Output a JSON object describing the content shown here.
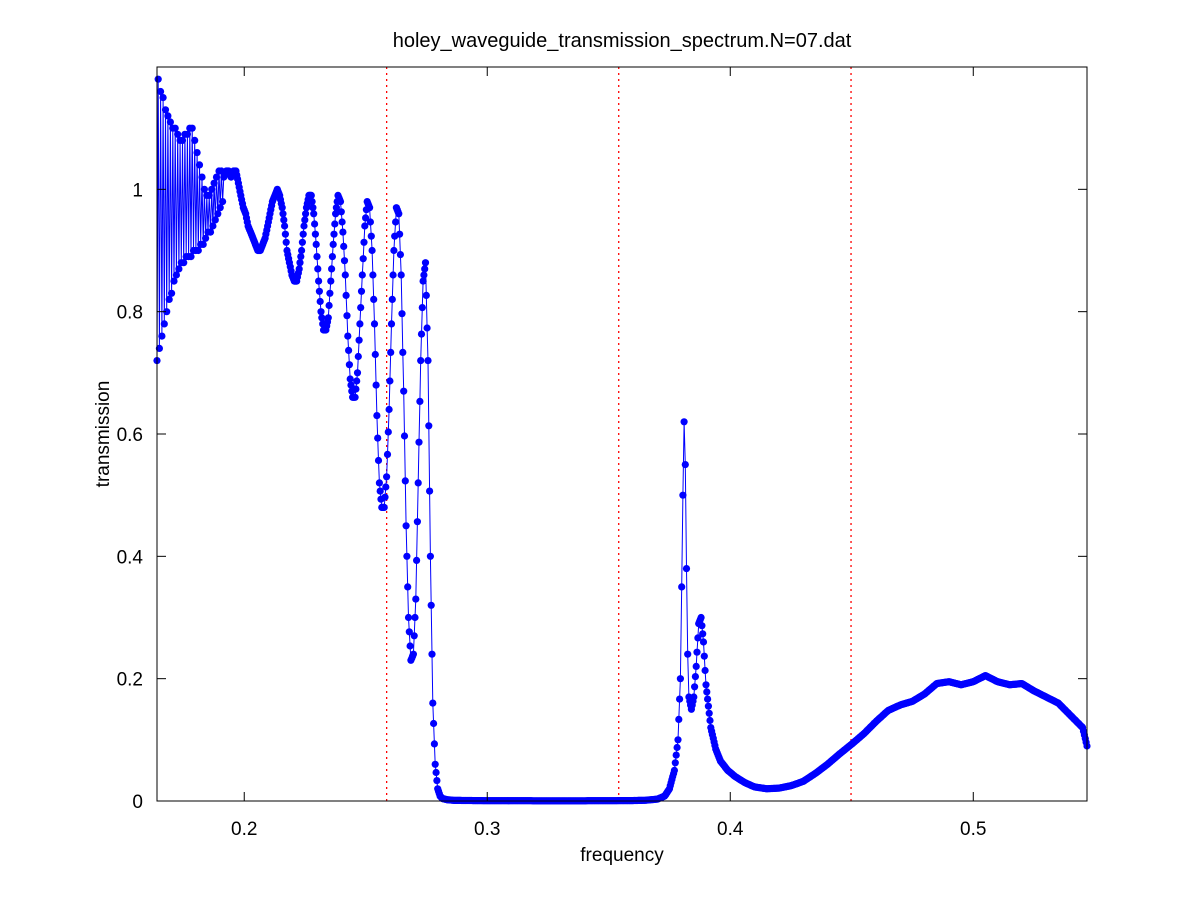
{
  "chart_data": {
    "type": "line",
    "title": "holey_waveguide_transmission_spectrum.N=07.dat",
    "xlabel": "frequency",
    "ylabel": "transmission",
    "xlim": [
      0.1641,
      0.5468
    ],
    "ylim": [
      0,
      1.2
    ],
    "x_ticks": [
      0.2,
      0.3,
      0.4,
      0.5
    ],
    "x_tick_labels": [
      "0.2",
      "0.3",
      "0.4",
      "0.5"
    ],
    "y_ticks": [
      0,
      0.2,
      0.4,
      0.6,
      0.8,
      1
    ],
    "y_tick_labels": [
      "0",
      "0.2",
      "0.4",
      "0.6",
      "0.8",
      "1"
    ],
    "grid": false,
    "legend": "none",
    "marker": "filled-circle",
    "vertical_markers": [
      {
        "x": 0.2586,
        "color": "#ff0000",
        "style": "dotted"
      },
      {
        "x": 0.3541,
        "color": "#ff0000",
        "style": "dotted"
      },
      {
        "x": 0.4497,
        "color": "#ff0000",
        "style": "dotted"
      }
    ],
    "series": [
      {
        "color": "#0000ff",
        "points": [
          [
            0.1641,
            0.72
          ],
          [
            0.1646,
            1.18
          ],
          [
            0.1651,
            0.74
          ],
          [
            0.1656,
            1.16
          ],
          [
            0.1661,
            0.76
          ],
          [
            0.1666,
            1.15
          ],
          [
            0.1671,
            0.78
          ],
          [
            0.1676,
            1.13
          ],
          [
            0.1681,
            0.8
          ],
          [
            0.1686,
            1.12
          ],
          [
            0.1691,
            0.82
          ],
          [
            0.1696,
            1.11
          ],
          [
            0.1701,
            0.83
          ],
          [
            0.1706,
            1.1
          ],
          [
            0.1711,
            0.85
          ],
          [
            0.1716,
            1.1
          ],
          [
            0.1721,
            0.86
          ],
          [
            0.1726,
            1.09
          ],
          [
            0.1731,
            0.87
          ],
          [
            0.1736,
            1.08
          ],
          [
            0.1741,
            0.88
          ],
          [
            0.1746,
            1.08
          ],
          [
            0.1751,
            0.88
          ],
          [
            0.1756,
            1.09
          ],
          [
            0.1761,
            0.89
          ],
          [
            0.1766,
            1.09
          ],
          [
            0.1771,
            0.89
          ],
          [
            0.1776,
            1.1
          ],
          [
            0.1781,
            0.89
          ],
          [
            0.1786,
            1.1
          ],
          [
            0.1791,
            0.9
          ],
          [
            0.1796,
            1.08
          ],
          [
            0.1801,
            0.9
          ],
          [
            0.1806,
            1.06
          ],
          [
            0.1811,
            0.9
          ],
          [
            0.1816,
            1.04
          ],
          [
            0.1821,
            0.91
          ],
          [
            0.1826,
            1.02
          ],
          [
            0.1831,
            0.91
          ],
          [
            0.1836,
            1.0
          ],
          [
            0.1841,
            0.92
          ],
          [
            0.1846,
            0.99
          ],
          [
            0.1851,
            0.93
          ],
          [
            0.1856,
            0.99
          ],
          [
            0.1861,
            0.93
          ],
          [
            0.1866,
            1.0
          ],
          [
            0.1871,
            0.94
          ],
          [
            0.1876,
            1.01
          ],
          [
            0.1881,
            0.95
          ],
          [
            0.1886,
            1.02
          ],
          [
            0.1891,
            0.96
          ],
          [
            0.1896,
            1.03
          ],
          [
            0.1901,
            0.97
          ],
          [
            0.1906,
            1.03
          ],
          [
            0.1911,
            0.98
          ],
          [
            0.1916,
            1.02
          ],
          [
            0.1926,
            1.03
          ],
          [
            0.1936,
            1.03
          ],
          [
            0.1946,
            1.02
          ],
          [
            0.1956,
            1.03
          ],
          [
            0.1966,
            1.03
          ],
          [
            0.1976,
            1.01
          ],
          [
            0.1986,
            0.99
          ],
          [
            0.1996,
            0.97
          ],
          [
            0.2006,
            0.96
          ],
          [
            0.2016,
            0.94
          ],
          [
            0.2026,
            0.93
          ],
          [
            0.2036,
            0.92
          ],
          [
            0.2046,
            0.91
          ],
          [
            0.2056,
            0.9
          ],
          [
            0.2066,
            0.9
          ],
          [
            0.2076,
            0.91
          ],
          [
            0.2086,
            0.92
          ],
          [
            0.2096,
            0.94
          ],
          [
            0.2106,
            0.96
          ],
          [
            0.2116,
            0.98
          ],
          [
            0.2126,
            0.99
          ],
          [
            0.2136,
            1.0
          ],
          [
            0.2146,
            0.99
          ],
          [
            0.2156,
            0.97
          ],
          [
            0.2166,
            0.94
          ],
          [
            0.2176,
            0.9
          ],
          [
            0.2186,
            0.88
          ],
          [
            0.2196,
            0.86
          ],
          [
            0.2206,
            0.85
          ],
          [
            0.2216,
            0.85
          ],
          [
            0.2226,
            0.87
          ],
          [
            0.2236,
            0.9
          ],
          [
            0.2246,
            0.94
          ],
          [
            0.2256,
            0.97
          ],
          [
            0.2266,
            0.99
          ],
          [
            0.2276,
            0.99
          ],
          [
            0.2286,
            0.96
          ],
          [
            0.2296,
            0.91
          ],
          [
            0.2306,
            0.85
          ],
          [
            0.2316,
            0.8
          ],
          [
            0.2326,
            0.77
          ],
          [
            0.2336,
            0.77
          ],
          [
            0.2346,
            0.79
          ],
          [
            0.2356,
            0.85
          ],
          [
            0.2366,
            0.91
          ],
          [
            0.2376,
            0.96
          ],
          [
            0.2386,
            0.99
          ],
          [
            0.2396,
            0.98
          ],
          [
            0.2406,
            0.93
          ],
          [
            0.2416,
            0.86
          ],
          [
            0.2426,
            0.76
          ],
          [
            0.2436,
            0.69
          ],
          [
            0.2446,
            0.66
          ],
          [
            0.2456,
            0.66
          ],
          [
            0.2466,
            0.7
          ],
          [
            0.2476,
            0.78
          ],
          [
            0.2486,
            0.86
          ],
          [
            0.2496,
            0.94
          ],
          [
            0.2506,
            0.98
          ],
          [
            0.2516,
            0.97
          ],
          [
            0.2526,
            0.9
          ],
          [
            0.2536,
            0.78
          ],
          [
            0.2546,
            0.63
          ],
          [
            0.2556,
            0.52
          ],
          [
            0.2566,
            0.48
          ],
          [
            0.2576,
            0.48
          ],
          [
            0.2586,
            0.53
          ],
          [
            0.2596,
            0.64
          ],
          [
            0.2606,
            0.78
          ],
          [
            0.2616,
            0.9
          ],
          [
            0.2626,
            0.97
          ],
          [
            0.2636,
            0.96
          ],
          [
            0.2646,
            0.86
          ],
          [
            0.2656,
            0.67
          ],
          [
            0.2666,
            0.45
          ],
          [
            0.2676,
            0.3
          ],
          [
            0.2686,
            0.23
          ],
          [
            0.2696,
            0.24
          ],
          [
            0.2706,
            0.33
          ],
          [
            0.2716,
            0.52
          ],
          [
            0.2726,
            0.72
          ],
          [
            0.2736,
            0.85
          ],
          [
            0.2746,
            0.88
          ],
          [
            0.2756,
            0.72
          ],
          [
            0.2766,
            0.4
          ],
          [
            0.2776,
            0.16
          ],
          [
            0.2786,
            0.06
          ],
          [
            0.2796,
            0.02
          ],
          [
            0.2806,
            0.008
          ],
          [
            0.2816,
            0.004
          ],
          [
            0.2836,
            0.002
          ],
          [
            0.2866,
            0.001
          ],
          [
            0.3,
            0.0005
          ],
          [
            0.32,
            0.0004
          ],
          [
            0.34,
            0.0004
          ],
          [
            0.35,
            0.0005
          ],
          [
            0.36,
            0.0007
          ],
          [
            0.365,
            0.0012
          ],
          [
            0.37,
            0.003
          ],
          [
            0.373,
            0.008
          ],
          [
            0.375,
            0.02
          ],
          [
            0.377,
            0.05
          ],
          [
            0.3785,
            0.1
          ],
          [
            0.3795,
            0.2
          ],
          [
            0.38,
            0.35
          ],
          [
            0.3805,
            0.5
          ],
          [
            0.381,
            0.62
          ],
          [
            0.3815,
            0.55
          ],
          [
            0.382,
            0.38
          ],
          [
            0.3825,
            0.24
          ],
          [
            0.383,
            0.17
          ],
          [
            0.384,
            0.15
          ],
          [
            0.385,
            0.17
          ],
          [
            0.386,
            0.22
          ],
          [
            0.387,
            0.29
          ],
          [
            0.388,
            0.3
          ],
          [
            0.389,
            0.26
          ],
          [
            0.39,
            0.19
          ],
          [
            0.392,
            0.12
          ],
          [
            0.394,
            0.085
          ],
          [
            0.396,
            0.065
          ],
          [
            0.399,
            0.05
          ],
          [
            0.402,
            0.04
          ],
          [
            0.406,
            0.03
          ],
          [
            0.41,
            0.023
          ],
          [
            0.415,
            0.02
          ],
          [
            0.42,
            0.021
          ],
          [
            0.425,
            0.025
          ],
          [
            0.43,
            0.032
          ],
          [
            0.435,
            0.045
          ],
          [
            0.44,
            0.06
          ],
          [
            0.445,
            0.077
          ],
          [
            0.45,
            0.093
          ],
          [
            0.455,
            0.11
          ],
          [
            0.46,
            0.13
          ],
          [
            0.465,
            0.148
          ],
          [
            0.47,
            0.157
          ],
          [
            0.475,
            0.163
          ],
          [
            0.48,
            0.175
          ],
          [
            0.485,
            0.192
          ],
          [
            0.49,
            0.195
          ],
          [
            0.495,
            0.19
          ],
          [
            0.5,
            0.195
          ],
          [
            0.505,
            0.205
          ],
          [
            0.51,
            0.195
          ],
          [
            0.515,
            0.19
          ],
          [
            0.52,
            0.192
          ],
          [
            0.525,
            0.18
          ],
          [
            0.53,
            0.17
          ],
          [
            0.535,
            0.16
          ],
          [
            0.54,
            0.14
          ],
          [
            0.545,
            0.12
          ],
          [
            0.5468,
            0.09
          ]
        ]
      }
    ]
  }
}
